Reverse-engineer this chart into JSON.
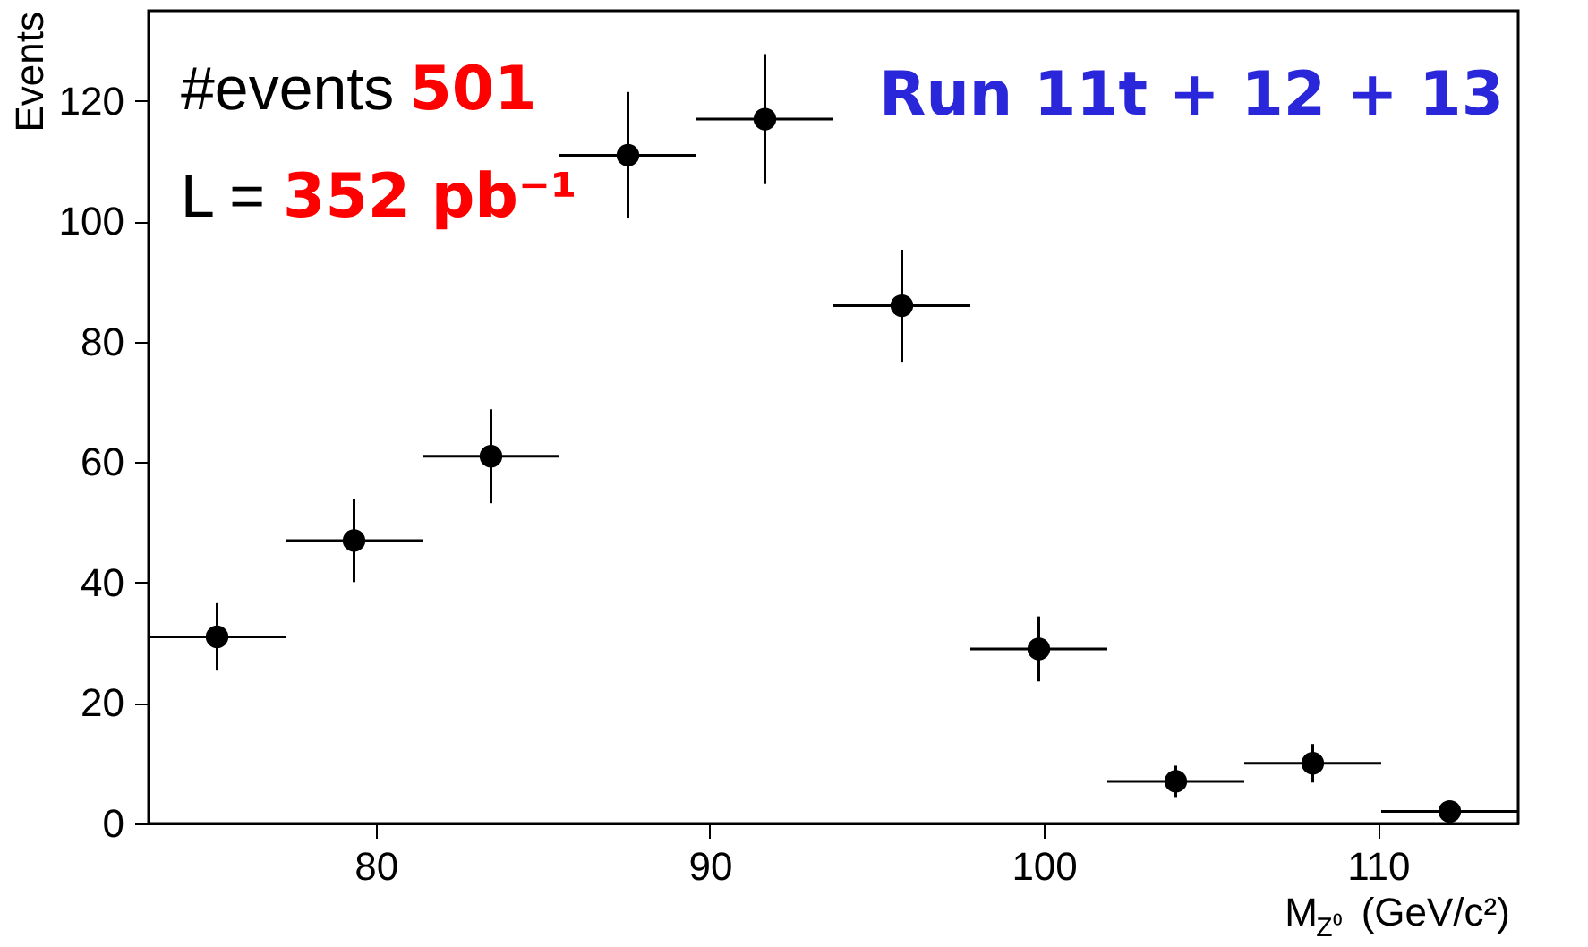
{
  "chart_data": {
    "type": "scatter",
    "xlabel": "M$_{Z⁰}$ (GeV/c²)",
    "ylabel": "Events",
    "x": [
      75.25,
      79.35,
      83.45,
      87.55,
      91.65,
      95.75,
      99.85,
      103.95,
      108.05,
      112.15
    ],
    "values": [
      31,
      47,
      61,
      111,
      117,
      86,
      29,
      7,
      10,
      2
    ],
    "errors": [
      5.6,
      6.9,
      7.8,
      10.5,
      10.8,
      9.3,
      5.4,
      2.6,
      3.2,
      1.4
    ],
    "xerrors": [
      2.05,
      2.05,
      2.05,
      2.05,
      2.05,
      2.05,
      2.05,
      2.05,
      2.05,
      2.05
    ],
    "color": "#000000",
    "marker": "circle",
    "grid": false,
    "xlim": [
      73.2,
      114.2
    ],
    "ylim": [
      0,
      135
    ],
    "xticks": [
      80,
      90,
      100,
      110
    ],
    "yticks": [
      0,
      20,
      40,
      60,
      80,
      100,
      120
    ],
    "annotations": [
      "#events",
      "501",
      "L =",
      "352 pb⁻¹",
      "Run 11t + 12 + 13"
    ]
  }
}
